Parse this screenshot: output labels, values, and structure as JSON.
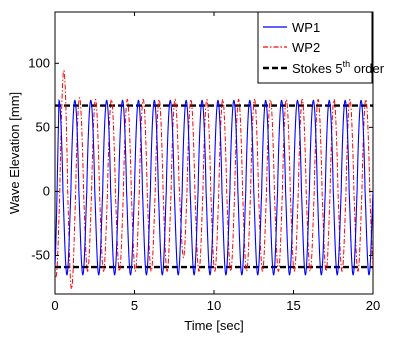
{
  "chart_data": {
    "type": "line",
    "xlabel": "Time [sec]",
    "ylabel": "Wave Elevation [mm]",
    "xlim": [
      0,
      20
    ],
    "ylim": [
      -80,
      140
    ],
    "xticks": [
      0,
      5,
      10,
      15,
      20
    ],
    "yticks": [
      -50,
      0,
      50,
      100
    ],
    "grid": false,
    "legend_position": "top-right",
    "wave_period_sec": 1.0,
    "series": [
      {
        "name": "WP1",
        "color": "#0000ff",
        "style": "solid",
        "mean": 0,
        "amplitude_crest": 71,
        "amplitude_trough": -65,
        "period": 1.0
      },
      {
        "name": "WP2",
        "color": "#ff0000",
        "style": "dashdot",
        "mean": 0,
        "amplitude_crest": 70,
        "amplitude_trough": -64,
        "period": 1.0,
        "initial_peak": 96,
        "initial_trough": -77,
        "peak_at_8s": 86
      },
      {
        "name": "Stokes 5th order",
        "color": "#000000",
        "style": "dashed",
        "crest_level": 67,
        "trough_level": -59
      }
    ],
    "legend": {
      "wp1": "WP1",
      "wp2": "WP2",
      "stokes_main": "Stokes 5",
      "stokes_sup": "th",
      "stokes_tail": " order"
    }
  }
}
